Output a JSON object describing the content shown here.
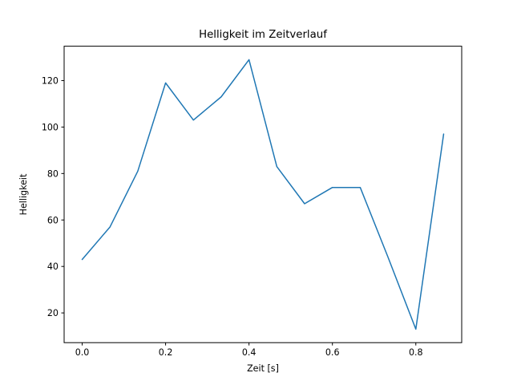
{
  "figure": {
    "background": "#ffffff"
  },
  "chart_data": {
    "type": "line",
    "title": "Helligkeit im Zeitverlauf",
    "xlabel": "Zeit [s]",
    "ylabel": "Helligkeit",
    "x": [
      0.0,
      0.0667,
      0.1333,
      0.2,
      0.2667,
      0.3333,
      0.4,
      0.4667,
      0.5333,
      0.6,
      0.6667,
      0.7333,
      0.8,
      0.8667
    ],
    "values": [
      43,
      57,
      81,
      119,
      103,
      113,
      129,
      83,
      67,
      74,
      74,
      44,
      13,
      97
    ],
    "line_color": "#1f77b4",
    "line_width": 1.5,
    "axis_color": "#000000",
    "xlim": [
      -0.0433,
      0.91
    ],
    "ylim": [
      7.2,
      134.8
    ],
    "xticks": {
      "values": [
        0.0,
        0.2,
        0.4,
        0.6,
        0.8
      ],
      "labels": [
        "0.0",
        "0.2",
        "0.4",
        "0.6",
        "0.8"
      ]
    },
    "yticks": {
      "values": [
        20,
        40,
        60,
        80,
        100,
        120
      ],
      "labels": [
        "20",
        "40",
        "60",
        "80",
        "100",
        "120"
      ]
    },
    "grid": false,
    "legend": "none"
  }
}
